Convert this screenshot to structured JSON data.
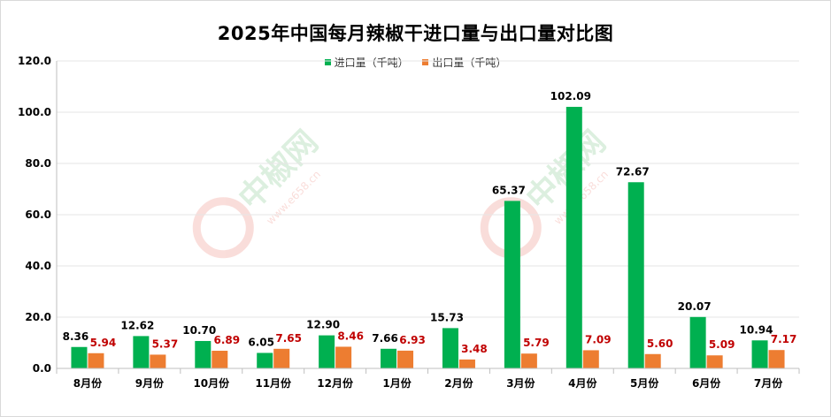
{
  "chart_data": {
    "type": "bar",
    "title": "2025年中国每月辣椒干进口量与出口量对比图",
    "categories": [
      "8月份",
      "9月份",
      "10月份",
      "11月份",
      "12月份",
      "1月份",
      "2月份",
      "3月份",
      "4月份",
      "5月份",
      "6月份",
      "7月份"
    ],
    "series": [
      {
        "name": "进口量（千吨）",
        "color": "#00b050",
        "values": [
          8.36,
          12.62,
          10.7,
          6.05,
          12.9,
          7.66,
          15.73,
          65.37,
          102.09,
          72.67,
          20.07,
          10.94
        ],
        "labels": [
          "8.36",
          "12.62",
          "10.70",
          "6.05",
          "12.90",
          "7.66",
          "15.73",
          "65.37",
          "102.09",
          "72.67",
          "20.07",
          "10.94"
        ],
        "label_color": "#000000"
      },
      {
        "name": "出口量（千吨）",
        "color": "#ed7d31",
        "values": [
          5.94,
          5.37,
          6.89,
          7.65,
          8.46,
          6.93,
          3.48,
          5.79,
          7.09,
          5.6,
          5.09,
          7.17
        ],
        "labels": [
          "5.94",
          "5.37",
          "6.89",
          "7.65",
          "8.46",
          "6.93",
          "3.48",
          "5.79",
          "7.09",
          "5.60",
          "5.09",
          "7.17"
        ],
        "label_color": "#c00000"
      }
    ],
    "yticks": [
      "0.0",
      "20.0",
      "40.0",
      "60.0",
      "80.0",
      "100.0",
      "120.0"
    ],
    "ylim": [
      0,
      120
    ],
    "grid": true,
    "legend_position": "top"
  },
  "watermark": {
    "text": "中椒网",
    "url": "www.e658.cn"
  }
}
